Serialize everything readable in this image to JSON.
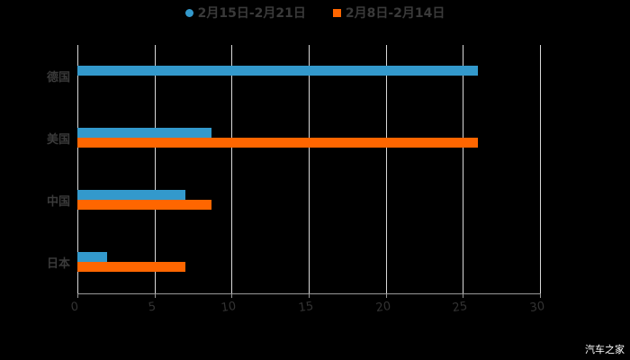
{
  "chart_data": {
    "type": "bar",
    "orientation": "horizontal",
    "title": "",
    "categories": [
      "德国",
      "美国",
      "中国",
      "日本"
    ],
    "series": [
      {
        "name": "2月15日-2月21日",
        "color": "#3399cc",
        "values": [
          26,
          8.7,
          7,
          1.9
        ]
      },
      {
        "name": "2月8日-2月14日",
        "color": "#ff6600",
        "values": [
          null,
          26,
          8.7,
          7
        ]
      }
    ],
    "xlabel": "",
    "ylabel": "",
    "xlim": [
      0,
      30
    ],
    "xticks": [
      "0",
      "5",
      "10",
      "15",
      "20",
      "25",
      "30"
    ],
    "grid": true,
    "legend_position": "top"
  },
  "legend": [
    {
      "label": "2月15日-2月21日",
      "color": "#3399cc",
      "shape": "circle"
    },
    {
      "label": "2月8日-2月14日",
      "color": "#ff6600",
      "shape": "square"
    }
  ],
  "watermark": "汽车之家"
}
